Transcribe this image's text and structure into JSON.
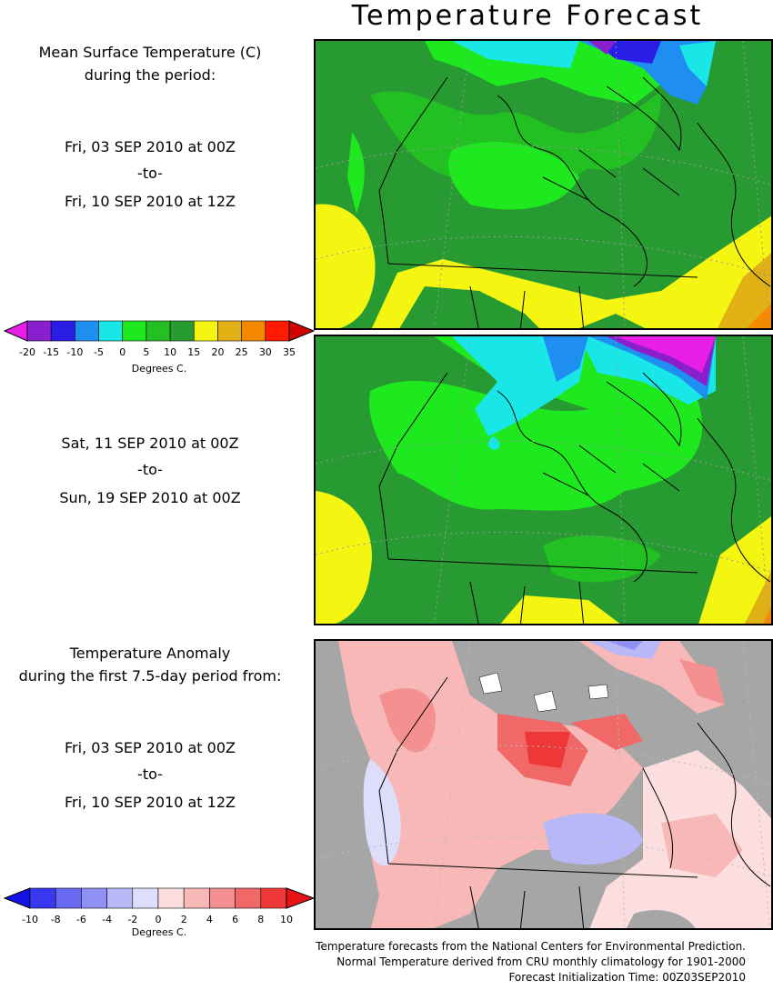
{
  "title": "Temperature Forecast",
  "panel1": {
    "line1": "Mean Surface Temperature (C)",
    "line2": "during the period:",
    "start": "Fri, 03 SEP 2010 at 00Z",
    "sep": "-to-",
    "end": "Fri, 10 SEP 2010 at 12Z"
  },
  "panel2": {
    "start": "Sat, 11 SEP 2010 at 00Z",
    "sep": "-to-",
    "end": "Sun, 19 SEP 2010 at 00Z"
  },
  "panel3": {
    "line1": "Temperature Anomaly",
    "line2": "during the first 7.5-day period from:",
    "start": "Fri, 03 SEP 2010 at 00Z",
    "sep": "-to-",
    "end": "Fri, 10 SEP 2010 at 12Z"
  },
  "temp_colorbar": {
    "ticks": [
      "-20",
      "-15",
      "-10",
      "-5",
      "0",
      "5",
      "10",
      "15",
      "20",
      "25",
      "30",
      "35"
    ],
    "colors": [
      "#8a1fd0",
      "#2a1ee6",
      "#1e8ef0",
      "#19e6e6",
      "#1ee81e",
      "#22c022",
      "#289a32",
      "#f5f512",
      "#e0b014",
      "#f58a00",
      "#ff1a00"
    ],
    "low_color": "#e61ee6",
    "high_color": "#d20000",
    "unit": "Degrees C."
  },
  "anom_colorbar": {
    "ticks": [
      "-10",
      "-8",
      "-6",
      "-4",
      "-2",
      "0",
      "2",
      "4",
      "6",
      "8",
      "10"
    ],
    "colors": [
      "#3838ee",
      "#6868f0",
      "#9090f4",
      "#b8b8f8",
      "#dedefc",
      "#fcdede",
      "#f8b8b8",
      "#f49090",
      "#f06868",
      "#ee3838"
    ],
    "low_color": "#1414e6",
    "high_color": "#e61414",
    "unit": "Degrees C."
  },
  "footer": {
    "line1": "Temperature forecasts from the National Centers for Environmental Prediction.",
    "line2": "Normal Temperature derived from CRU monthly climatology for 1901-2000",
    "line3": "Forecast Initialization Time: 00Z03SEP2010"
  }
}
